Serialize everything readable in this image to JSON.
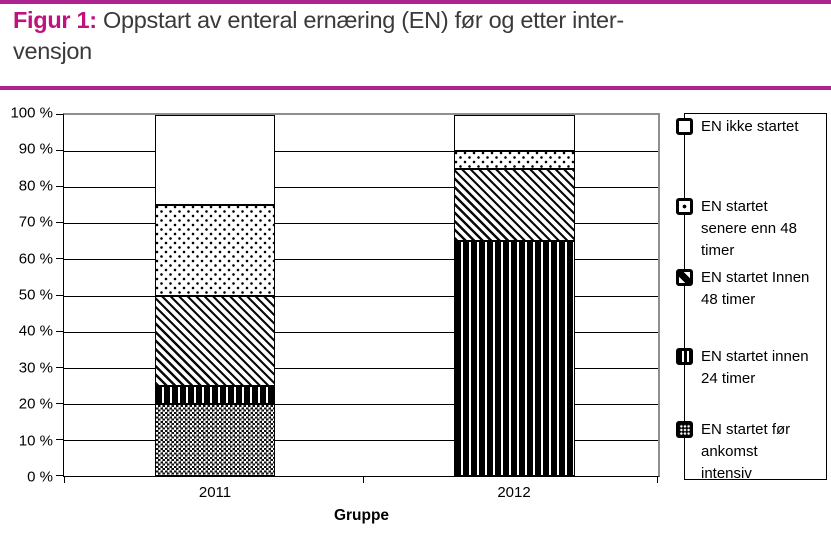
{
  "title": {
    "prefix": "Figur 1:",
    "line1": "Oppstart av enteral ernæring (EN) før og etter inter-",
    "line2": "vensjon"
  },
  "colors": {
    "rule_pink": "#ad2390",
    "title_pink": "#c1117c",
    "title_text": "#3a3a3a",
    "grid_gray": "#8f8f8f",
    "pattern_black": "#000000"
  },
  "chart_data": {
    "type": "bar",
    "subtype": "stacked-percent",
    "categories": [
      "2011",
      "2012"
    ],
    "xlabel": "Gruppe",
    "ylabel": "",
    "ylim": [
      0,
      100
    ],
    "y_unit": "%",
    "ytick_labels": [
      "100 %",
      "90 %",
      "80 %",
      "70 %",
      "60 %",
      "50 %",
      "40 %",
      "30 %",
      "20 %",
      "10 %",
      "0 %"
    ],
    "grid": true,
    "legend_position": "right",
    "series": [
      {
        "name": "EN startet før ankomst intensiv",
        "pattern": "cross",
        "values": [
          20,
          0
        ],
        "legend_lines": [
          "EN startet før",
          "ankomst",
          "intensiv"
        ]
      },
      {
        "name": "EN startet innen 24 timer",
        "pattern": "vert",
        "values": [
          5,
          65
        ],
        "legend_lines": [
          "EN startet innen",
          "24 timer"
        ]
      },
      {
        "name": "EN startet Innen 48 timer",
        "pattern": "diag",
        "values": [
          25,
          20
        ],
        "legend_lines": [
          "EN startet Innen",
          "48 timer"
        ]
      },
      {
        "name": "EN startet senere enn 48 timer",
        "pattern": "dots",
        "values": [
          25,
          5
        ],
        "legend_lines": [
          "EN startet",
          "senere enn 48",
          "timer"
        ]
      },
      {
        "name": "EN ikke startet",
        "pattern": "none",
        "values": [
          25,
          10
        ],
        "legend_lines": [
          "EN ikke startet"
        ]
      }
    ],
    "legend_order_top_to_bottom": [
      "EN ikke startet",
      "EN startet senere enn 48 timer",
      "EN startet Innen 48 timer",
      "EN startet innen 24 timer",
      "EN startet før ankomst intensiv"
    ]
  }
}
